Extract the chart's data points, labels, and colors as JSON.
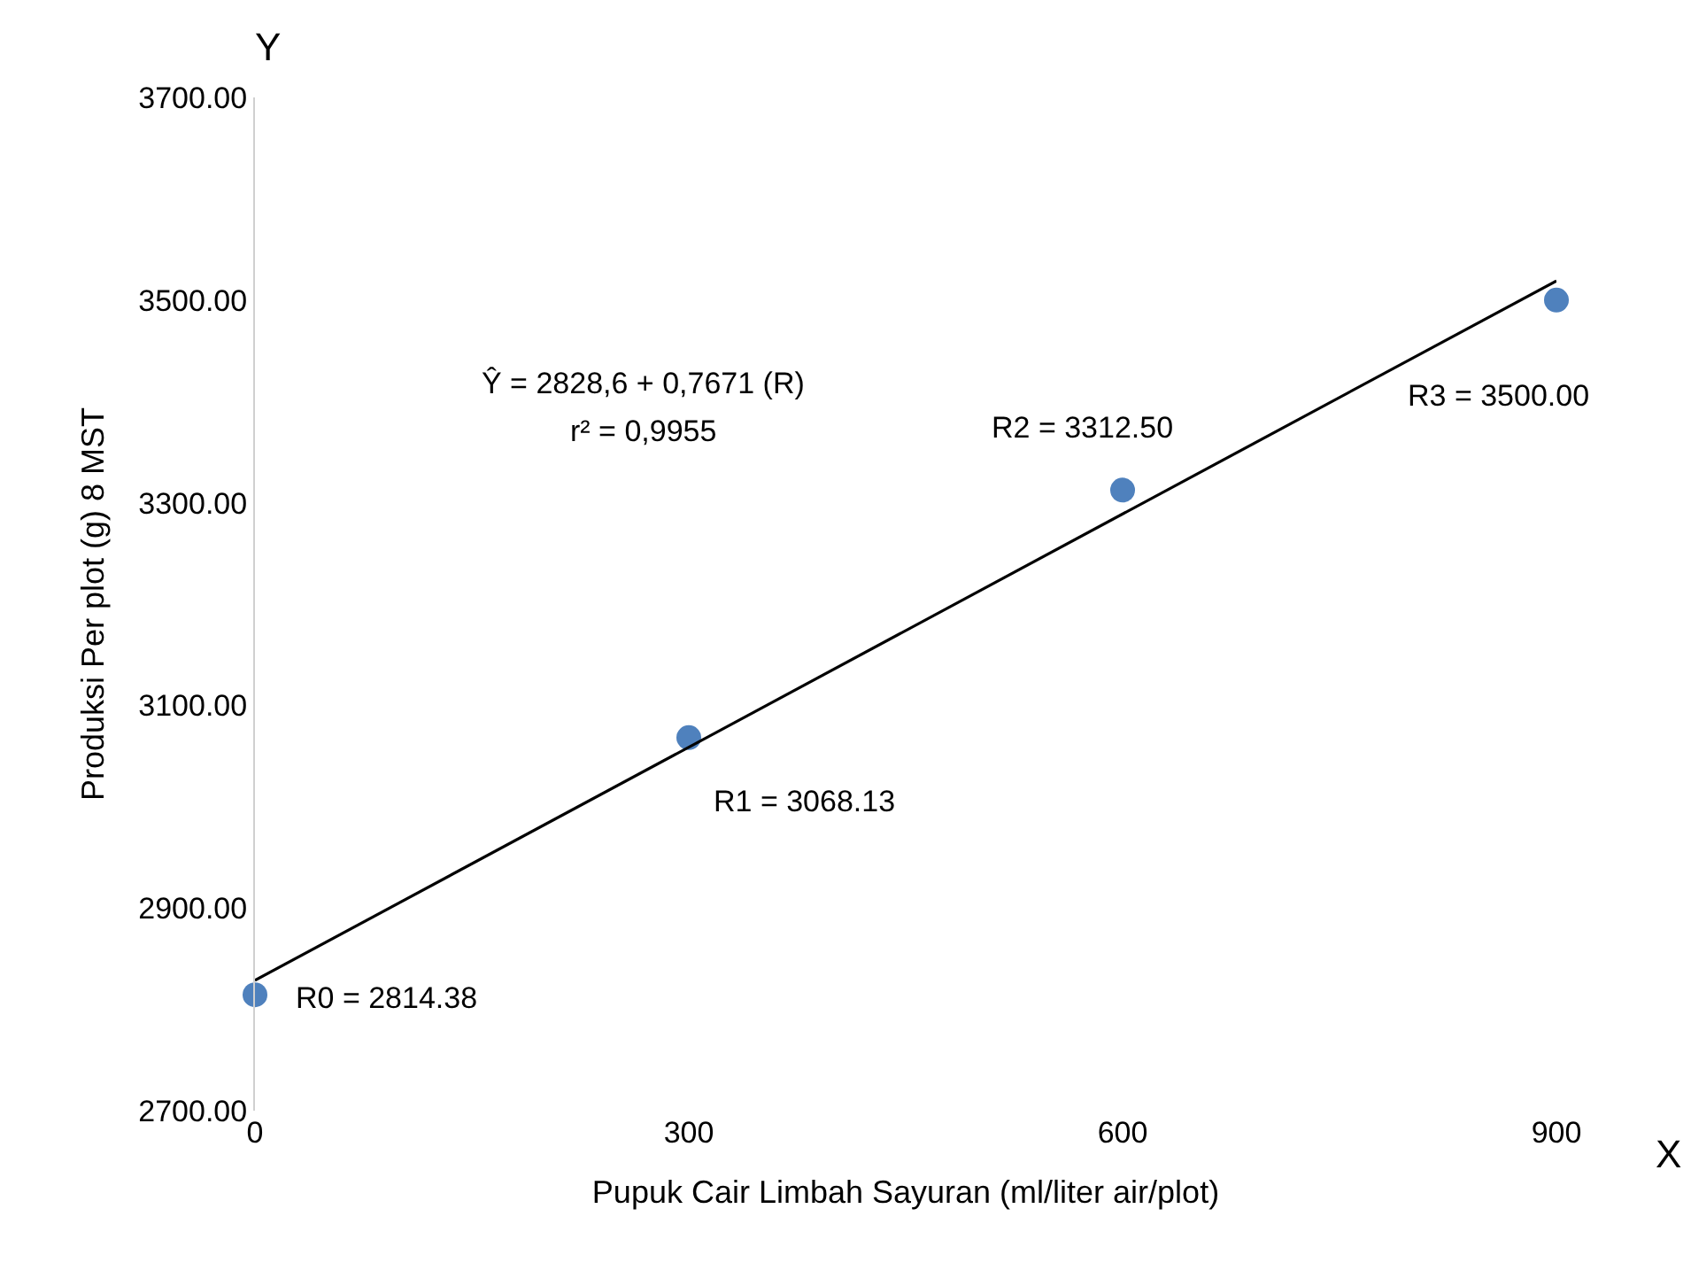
{
  "chart_data": {
    "type": "scatter",
    "xlabel": "Pupuk Cair Limbah Sayuran (ml/liter air/plot)",
    "ylabel": "Produksi Per plot (g) 8 MST",
    "x": [
      0,
      300,
      600,
      900
    ],
    "series": [
      {
        "color": "#4f81bd",
        "marker": "circle",
        "values": [
          2814.38,
          3068.13,
          3312.5,
          3500
        ]
      },
      {
        "type": "line",
        "color": "#000000",
        "x": [
          0,
          900
        ],
        "values": [
          2828.6,
          3519.0
        ],
        "line_style": "solid"
      }
    ],
    "xlim": [
      0,
      900
    ],
    "xticks": [
      0,
      300,
      600,
      900
    ],
    "ylim": [
      2700,
      3700
    ],
    "yticks": [
      {
        "value": 2700,
        "label": "2700.00"
      },
      {
        "value": 2900,
        "label": "2900.00"
      },
      {
        "value": 3100,
        "label": "3100.00"
      },
      {
        "value": 3300,
        "label": "3300.00"
      },
      {
        "value": 3500,
        "label": "3500.00"
      },
      {
        "value": 3700,
        "label": "3700.00"
      }
    ],
    "grid": false,
    "annotations": [
      "Y",
      "X",
      "Ŷ = 2828,6 + 0,7671 (R)",
      "r² = 0,9955",
      {
        "text": "R0 = 2814.38",
        "x": 0,
        "y": 2814.38
      },
      {
        "text": "R1 = 3068.13",
        "x": 300,
        "y": 3068.13
      },
      {
        "text": "R2 = 3312.50",
        "x": 600,
        "y": 3312.5
      },
      {
        "text": "R3 = 3500.00",
        "x": 900,
        "y": 3500
      }
    ]
  }
}
